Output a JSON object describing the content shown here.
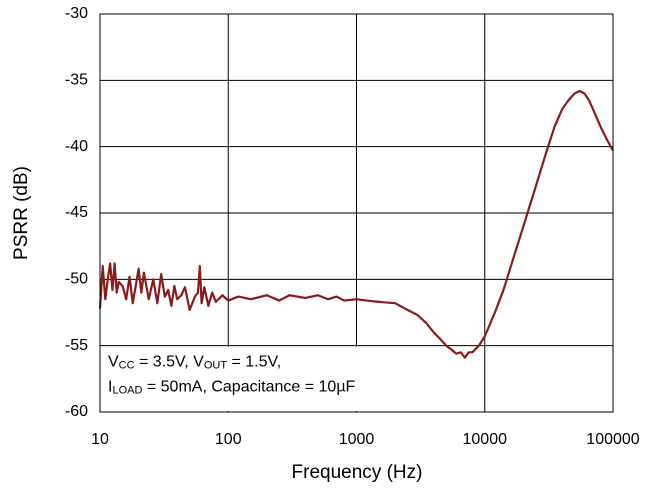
{
  "chart_data": {
    "type": "line",
    "xscale": "log",
    "grid": true,
    "x_label": "Frequency (Hz)",
    "y_label": "PSRR (dB)",
    "xlim": [
      10,
      100000
    ],
    "xticks": [
      10,
      100,
      1000,
      10000,
      100000
    ],
    "ylim": [
      -60,
      -30
    ],
    "yticks": [
      -60,
      -55,
      -50,
      -45,
      -40,
      -35,
      -30
    ],
    "annotation": [
      [
        {
          "text": "V"
        },
        {
          "text": "CC",
          "sub": true
        },
        {
          "text": " = 3.5V, V"
        },
        {
          "text": "OUT",
          "sub": true
        },
        {
          "text": " = 1.5V,"
        }
      ],
      [
        {
          "text": "I"
        },
        {
          "text": "LOAD",
          "sub": true
        },
        {
          "text": " = 50mA, Capacitance = 10µF"
        }
      ]
    ],
    "x": [
      10,
      10.5,
      11,
      11.5,
      12,
      12.5,
      13,
      13.5,
      14,
      15,
      16,
      17,
      18,
      19,
      20,
      21,
      22,
      24,
      26,
      28,
      30,
      32,
      34,
      36,
      38,
      40,
      43,
      46,
      50,
      55,
      58,
      60,
      62,
      65,
      70,
      75,
      80,
      90,
      100,
      120,
      150,
      200,
      250,
      300,
      400,
      500,
      600,
      700,
      800,
      1000,
      1200,
      1500,
      2000,
      2500,
      3000,
      3500,
      4000,
      4500,
      5000,
      5500,
      6000,
      6500,
      7000,
      7500,
      8000,
      9000,
      10000,
      12000,
      14000,
      16000,
      20000,
      25000,
      30000,
      35000,
      40000,
      45000,
      50000,
      55000,
      60000,
      65000,
      70000,
      80000,
      90000,
      100000
    ],
    "series": [
      {
        "color": "#8b1a1a",
        "values": [
          -52.2,
          -49,
          -51.5,
          -50,
          -48.8,
          -50.8,
          -48.8,
          -51,
          -50.2,
          -50.5,
          -51.5,
          -49.8,
          -51.8,
          -50.5,
          -49.2,
          -51,
          -49.5,
          -51.5,
          -50,
          -51.8,
          -49.6,
          -51.3,
          -50.8,
          -52,
          -50.5,
          -51.5,
          -51.2,
          -50.6,
          -52.3,
          -51.3,
          -51,
          -49,
          -51.8,
          -50.6,
          -52,
          -51,
          -51.7,
          -51.2,
          -51.6,
          -51.3,
          -51.5,
          -51.2,
          -51.6,
          -51.2,
          -51.4,
          -51.2,
          -51.5,
          -51.3,
          -51.6,
          -51.5,
          -51.6,
          -51.7,
          -51.8,
          -52.3,
          -52.7,
          -53.3,
          -54,
          -54.5,
          -55,
          -55.3,
          -55.6,
          -55.5,
          -55.9,
          -55.5,
          -55.5,
          -55,
          -54.3,
          -52.5,
          -50.8,
          -49,
          -46,
          -43,
          -40.5,
          -38.5,
          -37.2,
          -36.5,
          -36,
          -35.8,
          -36,
          -36.5,
          -37.2,
          -38.5,
          -39.5,
          -40.3
        ]
      }
    ]
  }
}
